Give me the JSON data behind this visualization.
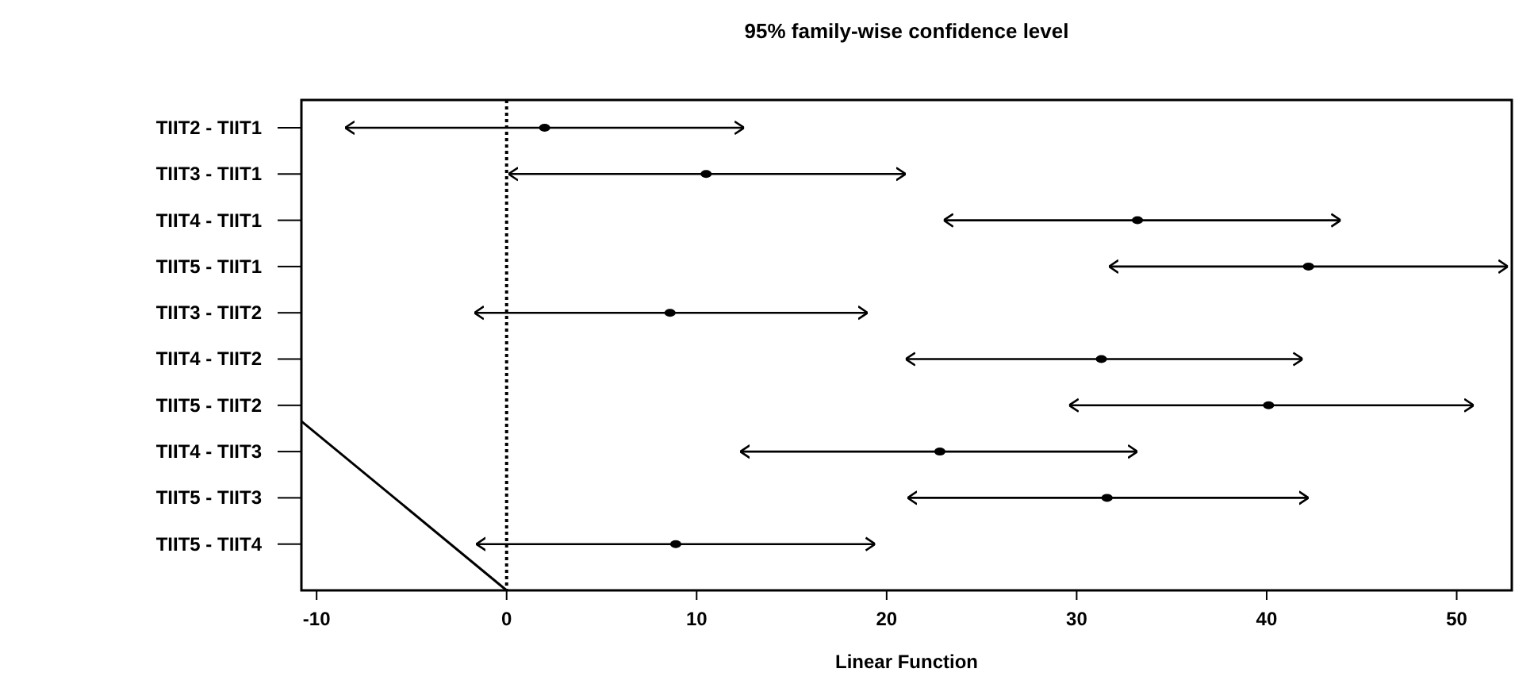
{
  "chart_data": {
    "type": "scatter",
    "orientation": "horizontal",
    "title": "95% family-wise confidence level",
    "xlabel": "Linear Function",
    "categories": [
      "TIIT2 - TIIT1",
      "TIIT3 - TIIT1",
      "TIIT4 - TIIT1",
      "TIIT5 - TIIT1",
      "TIIT3 - TIIT2",
      "TIIT4 - TIIT2",
      "TIIT5 - TIIT2",
      "TIIT4 - TIIT3",
      "TIIT5 - TIIT3",
      "TIIT5 - TIIT4"
    ],
    "values": [
      2.0,
      10.5,
      33.2,
      42.2,
      8.6,
      31.3,
      40.1,
      22.8,
      31.6,
      8.9
    ],
    "errors": [
      [
        -8.5,
        12.5
      ],
      [
        0.1,
        21.0
      ],
      [
        23.0,
        43.9
      ],
      [
        31.7,
        52.7
      ],
      [
        -1.7,
        19.0
      ],
      [
        21.0,
        41.9
      ],
      [
        29.6,
        50.9
      ],
      [
        12.3,
        33.2
      ],
      [
        21.1,
        42.2
      ],
      [
        -1.6,
        19.4
      ]
    ],
    "color": "#000000",
    "marker": "circle",
    "xlim": [
      -10.8,
      52.9
    ],
    "xticks": [
      -10,
      0,
      10,
      20,
      30,
      40,
      50
    ],
    "ref_lines": [
      {
        "axis": "x",
        "value": 0,
        "line_style": "dotted",
        "color": "#000000"
      }
    ]
  }
}
